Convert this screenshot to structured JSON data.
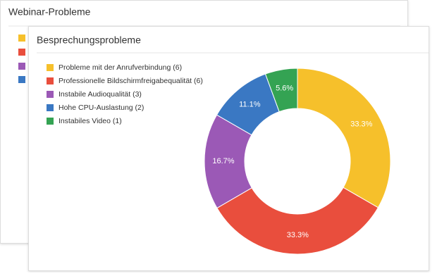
{
  "background_card": {
    "title": "Webinar-Probleme"
  },
  "chart_data": {
    "type": "donut",
    "title": "Besprechungsprobleme",
    "categories": [
      "Probleme mit der Anrufverbindung (6)",
      "Professionelle Bildschirmfreigabequalität (6)",
      "Instabile Audioqualität (3)",
      "Hohe CPU-Auslastung (2)",
      "Instabiles Video (1)"
    ],
    "values": [
      33.3,
      33.3,
      16.7,
      11.1,
      5.6
    ],
    "value_labels": [
      "33.3%",
      "33.3%",
      "16.7%",
      "11.1%",
      "5.6%"
    ],
    "colors": [
      "#f6c02b",
      "#e94e3d",
      "#9b59b6",
      "#3a78c3",
      "#34a353"
    ],
    "legend": "left"
  }
}
